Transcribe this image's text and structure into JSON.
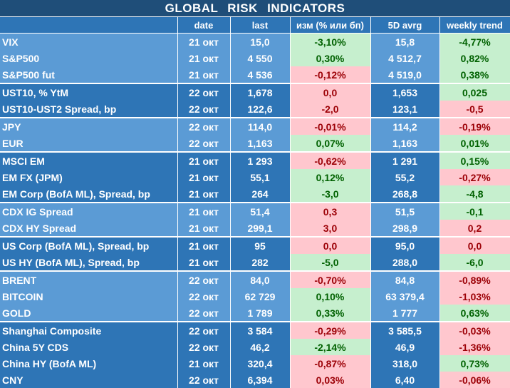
{
  "title": "GLOBAL   RISK   INDICATORS",
  "columns": [
    "",
    "date",
    "last",
    "изм (% или бп)",
    "5D avrg",
    "weekly trend"
  ],
  "groups": [
    {
      "rows": [
        {
          "name": "VIX",
          "date": "21 окт",
          "last": "15,0",
          "chg": "-3,10%",
          "chg_sign": "pos",
          "avg": "15,8",
          "trend": "-4,77%",
          "trend_sign": "pos"
        },
        {
          "name": "S&P500",
          "date": "21 окт",
          "last": "4 550",
          "chg": "0,30%",
          "chg_sign": "pos",
          "avg": "4 512,7",
          "trend": "0,82%",
          "trend_sign": "pos"
        },
        {
          "name": "S&P500 fut",
          "date": "21 окт",
          "last": "4 536",
          "chg": "-0,12%",
          "chg_sign": "neg",
          "avg": "4 519,0",
          "trend": "0,38%",
          "trend_sign": "pos"
        }
      ]
    },
    {
      "rows": [
        {
          "name": "UST10, % YtM",
          "date": "22 окт",
          "last": "1,678",
          "chg": "0,0",
          "chg_sign": "neg",
          "avg": "1,653",
          "trend": "0,025",
          "trend_sign": "pos"
        },
        {
          "name": "UST10-UST2 Spread, bp",
          "date": "22 окт",
          "last": "122,6",
          "chg": "-2,0",
          "chg_sign": "neg",
          "avg": "123,1",
          "trend": "-0,5",
          "trend_sign": "neg"
        }
      ]
    },
    {
      "rows": [
        {
          "name": "JPY",
          "date": "22 окт",
          "last": "114,0",
          "chg": "-0,01%",
          "chg_sign": "neg",
          "avg": "114,2",
          "trend": "-0,19%",
          "trend_sign": "neg"
        },
        {
          "name": "EUR",
          "date": "22 окт",
          "last": "1,163",
          "chg": "0,07%",
          "chg_sign": "pos",
          "avg": "1,163",
          "trend": "0,01%",
          "trend_sign": "pos"
        }
      ]
    },
    {
      "rows": [
        {
          "name": "MSCI EM",
          "date": "21 окт",
          "last": "1 293",
          "chg": "-0,62%",
          "chg_sign": "neg",
          "avg": "1 291",
          "trend": "0,15%",
          "trend_sign": "pos"
        },
        {
          "name": "EM FX (JPM)",
          "date": "21 окт",
          "last": "55,1",
          "chg": "0,12%",
          "chg_sign": "pos",
          "avg": "55,2",
          "trend": "-0,27%",
          "trend_sign": "neg"
        },
        {
          "name": "EM Corp (BofA ML), Spread, bp",
          "date": "21 окт",
          "last": "264",
          "chg": "-3,0",
          "chg_sign": "pos",
          "avg": "268,8",
          "trend": "-4,8",
          "trend_sign": "pos"
        }
      ]
    },
    {
      "rows": [
        {
          "name": "CDX IG Spread",
          "date": "21 окт",
          "last": "51,4",
          "chg": "0,3",
          "chg_sign": "neg",
          "avg": "51,5",
          "trend": "-0,1",
          "trend_sign": "pos"
        },
        {
          "name": "CDX HY Spread",
          "date": "21 окт",
          "last": "299,1",
          "chg": "3,0",
          "chg_sign": "neg",
          "avg": "298,9",
          "trend": "0,2",
          "trend_sign": "neg"
        }
      ]
    },
    {
      "rows": [
        {
          "name": "US Corp (BofA ML), Spread, bp",
          "date": "21 окт",
          "last": "95",
          "chg": "0,0",
          "chg_sign": "neg",
          "avg": "95,0",
          "trend": "0,0",
          "trend_sign": "neg"
        },
        {
          "name": "US HY (BofA ML), Spread, bp",
          "date": "21 окт",
          "last": "282",
          "chg": "-5,0",
          "chg_sign": "pos",
          "avg": "288,0",
          "trend": "-6,0",
          "trend_sign": "pos"
        }
      ]
    },
    {
      "rows": [
        {
          "name": "BRENT",
          "date": "22 окт",
          "last": "84,0",
          "chg": "-0,70%",
          "chg_sign": "neg",
          "avg": "84,8",
          "trend": "-0,89%",
          "trend_sign": "neg"
        },
        {
          "name": "BITCOIN",
          "date": "22 окт",
          "last": "62 729",
          "chg": "0,10%",
          "chg_sign": "pos",
          "avg": "63 379,4",
          "trend": "-1,03%",
          "trend_sign": "neg"
        },
        {
          "name": "GOLD",
          "date": "22 окт",
          "last": "1 789",
          "chg": "0,33%",
          "chg_sign": "pos",
          "avg": "1 777",
          "trend": "0,63%",
          "trend_sign": "pos"
        }
      ]
    },
    {
      "rows": [
        {
          "name": "Shanghai Composite",
          "date": "22 окт",
          "last": "3 584",
          "chg": "-0,29%",
          "chg_sign": "neg",
          "avg": "3 585,5",
          "trend": "-0,03%",
          "trend_sign": "neg"
        },
        {
          "name": "China 5Y CDS",
          "date": "22 окт",
          "last": "46,2",
          "chg": "-2,14%",
          "chg_sign": "pos",
          "avg": "46,9",
          "trend": "-1,36%",
          "trend_sign": "neg"
        },
        {
          "name": "China HY (BofA ML)",
          "date": "21 окт",
          "last": "320,4",
          "chg": "-0,87%",
          "chg_sign": "neg",
          "avg": "318,0",
          "trend": "0,73%",
          "trend_sign": "pos"
        },
        {
          "name": "CNY",
          "date": "22 окт",
          "last": "6,394",
          "chg": "0,03%",
          "chg_sign": "neg",
          "avg": "6,40",
          "trend": "-0,06%",
          "trend_sign": "neg"
        }
      ]
    }
  ],
  "colors": {
    "header": "#1f4e79",
    "band_light": "#5b9bd5",
    "band_dark": "#2e75b6",
    "positive_bg": "#c6efce",
    "positive_text": "#006100",
    "negative_bg": "#ffc7ce",
    "negative_text": "#9c0006"
  }
}
